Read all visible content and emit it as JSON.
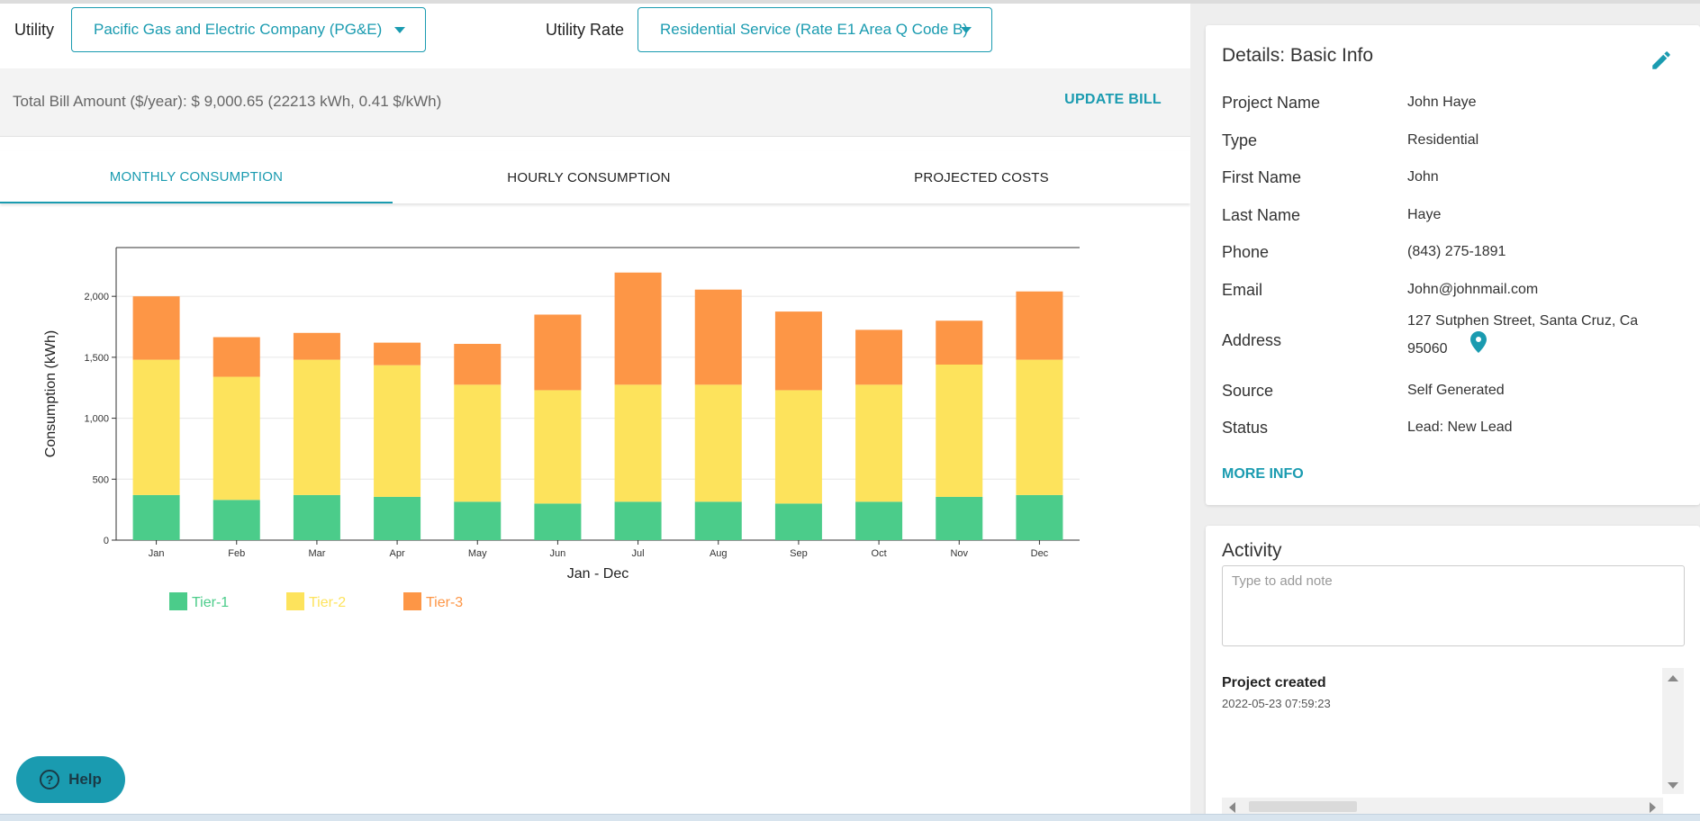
{
  "header": {
    "utility_label": "Utility",
    "utility_value": "Pacific Gas and Electric Company (PG&E)",
    "rate_label": "Utility Rate",
    "rate_value": "Residential Service (Rate E1 Area Q Code B)"
  },
  "bill": {
    "summary": "Total Bill Amount ($/year): $ 9,000.65 (22213 kWh, 0.41 $/kWh)",
    "update_label": "UPDATE BILL"
  },
  "tabs": [
    {
      "label": "MONTHLY CONSUMPTION",
      "active": true
    },
    {
      "label": "HOURLY CONSUMPTION",
      "active": false
    },
    {
      "label": "PROJECTED COSTS",
      "active": false
    }
  ],
  "chart_data": {
    "type": "bar",
    "stacked": true,
    "categories": [
      "Jan",
      "Feb",
      "Mar",
      "Apr",
      "May",
      "Jun",
      "Jul",
      "Aug",
      "Sep",
      "Oct",
      "Nov",
      "Dec"
    ],
    "series": [
      {
        "name": "Tier-1",
        "color": "#4bcc8a",
        "values": [
          370,
          330,
          370,
          355,
          315,
          300,
          315,
          315,
          300,
          315,
          355,
          370
        ]
      },
      {
        "name": "Tier-2",
        "color": "#fde35c",
        "values": [
          1110,
          1010,
          1110,
          1080,
          960,
          930,
          960,
          960,
          930,
          960,
          1085,
          1110
        ]
      },
      {
        "name": "Tier-3",
        "color": "#fd9646",
        "values": [
          520,
          325,
          220,
          185,
          335,
          620,
          920,
          780,
          645,
          450,
          360,
          560
        ]
      }
    ],
    "xlabel": "Jan - Dec",
    "ylabel": "Consumption (kWh)",
    "yticks": [
      0,
      500,
      1000,
      1500,
      2000
    ],
    "ytick_labels": [
      "0",
      "500",
      "1,000",
      "1,500",
      "2,000"
    ],
    "ylim": [
      0,
      2400
    ],
    "legend_position": "bottom-left"
  },
  "help_label": "Help",
  "details": {
    "title": "Details: Basic Info",
    "rows": [
      {
        "key": "Project Name",
        "value": "John Haye"
      },
      {
        "key": "Type",
        "value": "Residential"
      },
      {
        "key": "First Name",
        "value": "John"
      },
      {
        "key": "Last Name",
        "value": "Haye"
      },
      {
        "key": "Phone",
        "value": "(843) 275-1891"
      },
      {
        "key": "Email",
        "value": "John@johnmail.com"
      },
      {
        "key": "Address",
        "value": "127 Sutphen Street, Santa Cruz, Ca",
        "value2": "95060"
      },
      {
        "key": "Source",
        "value": "Self Generated"
      },
      {
        "key": "Status",
        "value": "Lead: New Lead"
      }
    ],
    "more_label": "MORE INFO"
  },
  "activity": {
    "title": "Activity",
    "placeholder": "Type to add note",
    "items": [
      {
        "title": "Project created",
        "time": "2022-05-23 07:59:23"
      }
    ]
  }
}
